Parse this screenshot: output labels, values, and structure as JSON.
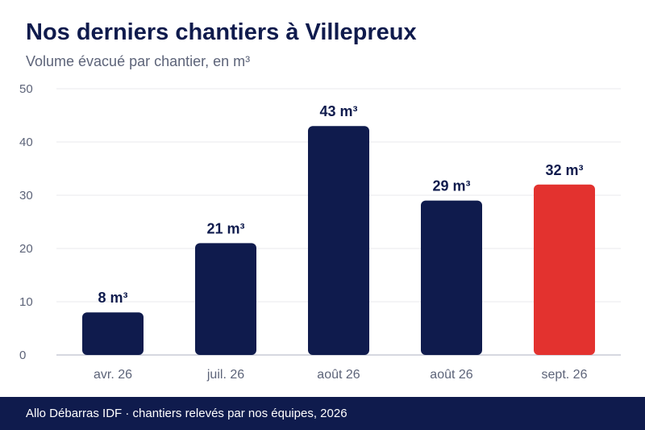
{
  "header": {
    "title": "Nos derniers chantiers à Villepreux",
    "subtitle": "Volume évacué par chantier, en m³"
  },
  "footer": {
    "text": "Allo Débarras IDF · chantiers relevés par nos équipes, 2026"
  },
  "colors": {
    "bar": "#0f1b4d",
    "highlight": "#e3322f",
    "grid": "#e9e9ee",
    "baseline": "#c9cbd6"
  },
  "chart_data": {
    "type": "bar",
    "title": "Nos derniers chantiers à Villepreux",
    "subtitle": "Volume évacué par chantier, en m³",
    "categories": [
      "avr. 26",
      "juil. 26",
      "août 26",
      "août 26",
      "sept. 26"
    ],
    "values": [
      8,
      21,
      43,
      29,
      32
    ],
    "value_labels": [
      "8 m³",
      "21 m³",
      "43 m³",
      "29 m³",
      "32 m³"
    ],
    "highlight_index": 4,
    "ylim": [
      0,
      50
    ],
    "yticks": [
      "0",
      "10",
      "20",
      "30",
      "40",
      "50"
    ],
    "grid": true,
    "legend": "none"
  }
}
